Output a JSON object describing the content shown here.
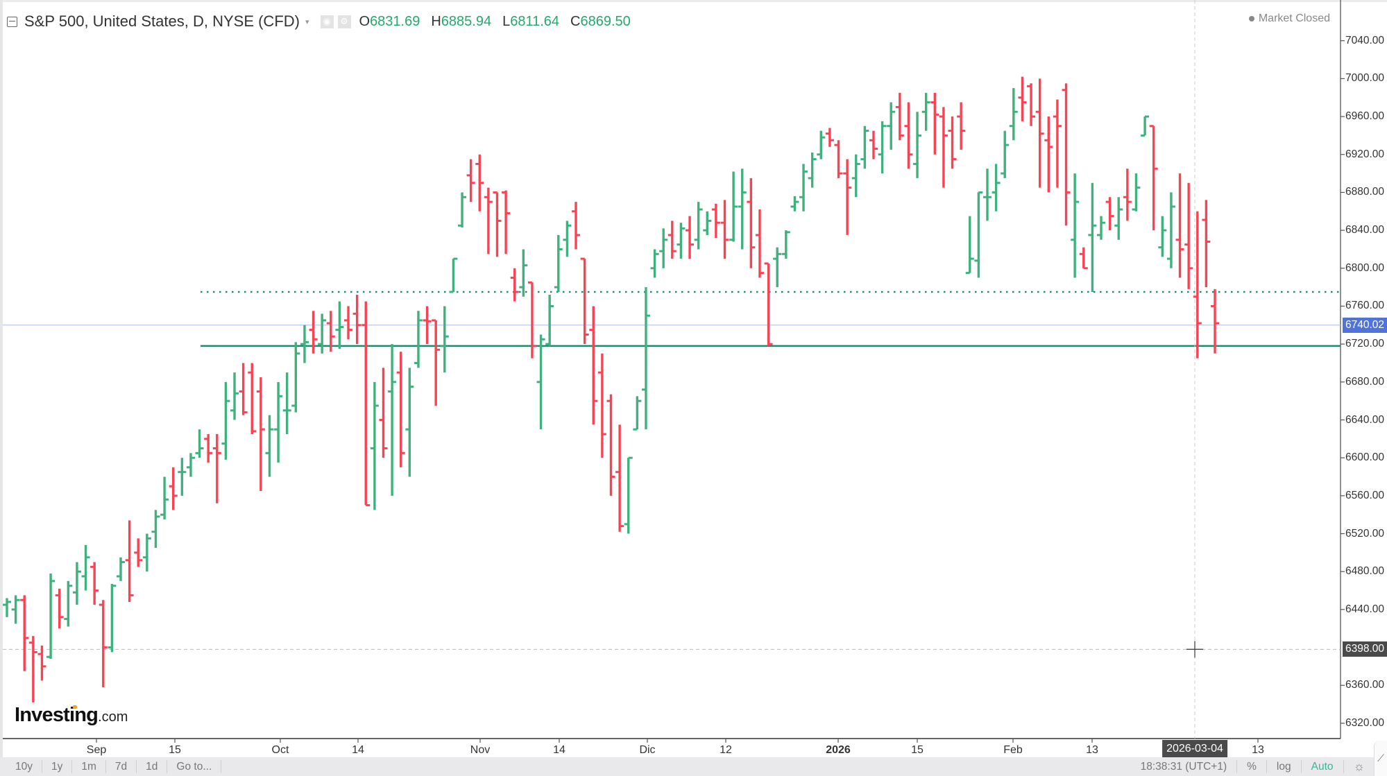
{
  "header": {
    "title": "S&P 500, United States, D, NYSE (CFD)",
    "caret": "▾",
    "icons": [
      "visibility-icon",
      "settings-icon"
    ],
    "ohlc": [
      {
        "key": "O",
        "value": "6831.69"
      },
      {
        "key": "H",
        "value": "6885.94"
      },
      {
        "key": "L",
        "value": "6811.64"
      },
      {
        "key": "C",
        "value": "6869.50"
      }
    ]
  },
  "status": {
    "market": "Market Closed"
  },
  "logo": {
    "name": "Investing",
    "suffix": ".com"
  },
  "colors": {
    "up": "#3fb17d",
    "down": "#f74454",
    "hline": "#0f8f6e",
    "price_line": "#b8c7f0",
    "price_badge": "#4f73d9",
    "crosshair_badge": "#4a4a4a",
    "auto": "#3bb39a"
  },
  "yaxis": {
    "ticks": [
      "7040.00",
      "7000.00",
      "6960.00",
      "6920.00",
      "6880.00",
      "6840.00",
      "6800.00",
      "6760.00",
      "6720.00",
      "6680.00",
      "6640.00",
      "6600.00",
      "6560.00",
      "6520.00",
      "6480.00",
      "6440.00",
      "6360.00",
      "6320.00"
    ],
    "price_badge": "6740.02",
    "crosshair_badge": "6398.00"
  },
  "xaxis": {
    "labels": [
      {
        "text": "Sep",
        "bold": false
      },
      {
        "text": "15",
        "bold": false
      },
      {
        "text": "Oct",
        "bold": false
      },
      {
        "text": "14",
        "bold": false
      },
      {
        "text": "Nov",
        "bold": false
      },
      {
        "text": "14",
        "bold": false
      },
      {
        "text": "Dic",
        "bold": false
      },
      {
        "text": "12",
        "bold": false
      },
      {
        "text": "2026",
        "bold": true
      },
      {
        "text": "15",
        "bold": false
      },
      {
        "text": "Feb",
        "bold": false
      },
      {
        "text": "13",
        "bold": false
      },
      {
        "text": "13",
        "bold": false
      }
    ],
    "crosshair_date": "2026-03-04"
  },
  "bottom_bar": {
    "ranges": [
      "10y",
      "1y",
      "1m",
      "7d",
      "1d",
      "Go to..."
    ],
    "time": "18:38:31 (UTC+1)",
    "percent": "%",
    "log": "log",
    "auto": "Auto"
  },
  "chart_data": {
    "type": "ohlc",
    "title": "S&P 500, United States, D, NYSE (CFD)",
    "xlabel": "",
    "ylabel": "",
    "ylim": [
      6300,
      7060
    ],
    "y_ticks": [
      6320,
      6360,
      6440,
      6480,
      6520,
      6560,
      6600,
      6640,
      6680,
      6720,
      6760,
      6800,
      6840,
      6880,
      6920,
      6960,
      7000,
      7040
    ],
    "x_tick_labels": [
      "Sep",
      "15",
      "Oct",
      "14",
      "Nov",
      "14",
      "Dic",
      "12",
      "2026",
      "15",
      "Feb",
      "13",
      "2026-03-04",
      "13"
    ],
    "horizontal_lines": [
      {
        "price": 6775,
        "style": "dotted",
        "color": "#0f8f6e"
      },
      {
        "price": 6718,
        "style": "solid",
        "color": "#0f8f6e"
      },
      {
        "price": 6740.02,
        "style": "thin",
        "color": "#b8c7f0",
        "label": "6740.02"
      }
    ],
    "crosshair": {
      "date": "2026-03-04",
      "price": 6398.0
    },
    "last_bar": {
      "open": 6831.69,
      "high": 6885.94,
      "low": 6811.64,
      "close": 6869.5
    },
    "bars": [
      [
        6445,
        6452,
        6432,
        6448
      ],
      [
        6440,
        6455,
        6425,
        6450
      ],
      [
        6450,
        6455,
        6375,
        6410
      ],
      [
        6405,
        6412,
        6342,
        6395
      ],
      [
        6393,
        6402,
        6365,
        6380
      ],
      [
        6390,
        6478,
        6388,
        6470
      ],
      [
        6455,
        6462,
        6420,
        6432
      ],
      [
        6430,
        6470,
        6422,
        6465
      ],
      [
        6458,
        6490,
        6445,
        6480
      ],
      [
        6475,
        6508,
        6460,
        6495
      ],
      [
        6485,
        6490,
        6445,
        6460
      ],
      [
        6445,
        6450,
        6358,
        6400
      ],
      [
        6400,
        6467,
        6395,
        6465
      ],
      [
        6475,
        6495,
        6470,
        6490
      ],
      [
        6492,
        6534,
        6448,
        6455
      ],
      [
        6500,
        6515,
        6485,
        6492
      ],
      [
        6495,
        6520,
        6480,
        6515
      ],
      [
        6522,
        6545,
        6505,
        6538
      ],
      [
        6540,
        6580,
        6535,
        6556
      ],
      [
        6570,
        6590,
        6545,
        6560
      ],
      [
        6585,
        6600,
        6560,
        6585
      ],
      [
        6590,
        6605,
        6580,
        6600
      ],
      [
        6605,
        6630,
        6600,
        6610
      ],
      [
        6620,
        6625,
        6595,
        6605
      ],
      [
        6610,
        6625,
        6552,
        6605
      ],
      [
        6615,
        6680,
        6598,
        6660
      ],
      [
        6650,
        6690,
        6640,
        6668
      ],
      [
        6670,
        6700,
        6645,
        6648
      ],
      [
        6690,
        6700,
        6625,
        6628
      ],
      [
        6670,
        6685,
        6565,
        6630
      ],
      [
        6605,
        6645,
        6580,
        6630
      ],
      [
        6630,
        6680,
        6595,
        6665
      ],
      [
        6650,
        6690,
        6625,
        6650
      ],
      [
        6655,
        6722,
        6648,
        6710
      ],
      [
        6720,
        6740,
        6700,
        6722
      ],
      [
        6735,
        6755,
        6710,
        6725
      ],
      [
        6720,
        6752,
        6710,
        6745
      ],
      [
        6742,
        6755,
        6712,
        6728
      ],
      [
        6735,
        6765,
        6715,
        6738
      ],
      [
        6745,
        6760,
        6725,
        6735
      ],
      [
        6752,
        6772,
        6720,
        6740
      ],
      [
        6740,
        6765,
        6550,
        6550
      ],
      [
        6610,
        6680,
        6545,
        6655
      ],
      [
        6640,
        6695,
        6600,
        6610
      ],
      [
        6670,
        6720,
        6560,
        6680
      ],
      [
        6690,
        6712,
        6590,
        6605
      ],
      [
        6630,
        6695,
        6580,
        6675
      ],
      [
        6700,
        6755,
        6695,
        6745
      ],
      [
        6745,
        6760,
        6720,
        6744
      ],
      [
        6745,
        6745,
        6655,
        6714
      ],
      [
        6718,
        6760,
        6690,
        6728
      ],
      [
        6775,
        6810,
        6775,
        6810
      ],
      [
        6845,
        6880,
        6843,
        6875
      ],
      [
        6898,
        6915,
        6870,
        6890
      ],
      [
        6910,
        6920,
        6860,
        6890
      ],
      [
        6875,
        6885,
        6815,
        6870
      ],
      [
        6880,
        6880,
        6812,
        6850
      ],
      [
        6880,
        6882,
        6815,
        6858
      ],
      [
        6790,
        6800,
        6765,
        6775
      ],
      [
        6780,
        6820,
        6770,
        6803
      ],
      [
        6785,
        6785,
        6705,
        6718
      ],
      [
        6680,
        6730,
        6630,
        6725
      ],
      [
        6720,
        6772,
        6718,
        6760
      ],
      [
        6780,
        6835,
        6775,
        6820
      ],
      [
        6830,
        6850,
        6812,
        6845
      ],
      [
        6860,
        6870,
        6820,
        6835
      ],
      [
        6810,
        6810,
        6720,
        6730
      ],
      [
        6735,
        6760,
        6635,
        6660
      ],
      [
        6690,
        6710,
        6600,
        6625
      ],
      [
        6660,
        6667,
        6560,
        6580
      ],
      [
        6585,
        6635,
        6522,
        6528
      ],
      [
        6530,
        6600,
        6520,
        6600
      ],
      [
        6630,
        6665,
        6630,
        6660
      ],
      [
        6672,
        6780,
        6630,
        6750
      ],
      [
        6800,
        6820,
        6790,
        6815
      ],
      [
        6818,
        6842,
        6800,
        6830
      ],
      [
        6835,
        6850,
        6810,
        6818
      ],
      [
        6825,
        6848,
        6810,
        6842
      ],
      [
        6840,
        6855,
        6810,
        6825
      ],
      [
        6830,
        6870,
        6820,
        6862
      ],
      [
        6840,
        6860,
        6835,
        6850
      ],
      [
        6862,
        6868,
        6832,
        6848
      ],
      [
        6848,
        6872,
        6810,
        6830
      ],
      [
        6830,
        6902,
        6828,
        6865
      ],
      [
        6865,
        6905,
        6820,
        6880
      ],
      [
        6870,
        6895,
        6800,
        6822
      ],
      [
        6835,
        6862,
        6790,
        6795
      ],
      [
        6805,
        6805,
        6718,
        6720
      ],
      [
        6810,
        6822,
        6780,
        6815
      ],
      [
        6815,
        6840,
        6810,
        6838
      ],
      [
        6865,
        6876,
        6860,
        6870
      ],
      [
        6875,
        6910,
        6860,
        6902
      ],
      [
        6895,
        6922,
        6885,
        6915
      ],
      [
        6920,
        6945,
        6915,
        6938
      ],
      [
        6942,
        6948,
        6928,
        6935
      ],
      [
        6930,
        6935,
        6895,
        6900
      ],
      [
        6900,
        6915,
        6835,
        6885
      ],
      [
        6895,
        6920,
        6875,
        6910
      ],
      [
        6915,
        6950,
        6905,
        6945
      ],
      [
        6935,
        6945,
        6915,
        6926
      ],
      [
        6920,
        6955,
        6900,
        6950
      ],
      [
        6950,
        6975,
        6925,
        6965
      ],
      [
        6970,
        6985,
        6935,
        6940
      ],
      [
        6950,
        6975,
        6905,
        6920
      ],
      [
        6910,
        6965,
        6895,
        6940
      ],
      [
        6965,
        6985,
        6945,
        6975
      ],
      [
        6975,
        6985,
        6920,
        6962
      ],
      [
        6960,
        6970,
        6885,
        6940
      ],
      [
        6945,
        6960,
        6905,
        6915
      ],
      [
        6960,
        6975,
        6925,
        6945
      ],
      [
        6795,
        6855,
        6795,
        6810
      ],
      [
        6808,
        6880,
        6790,
        6880
      ],
      [
        6875,
        6905,
        6850,
        6875
      ],
      [
        6880,
        6910,
        6860,
        6890
      ],
      [
        6900,
        6945,
        6895,
        6930
      ],
      [
        6950,
        6990,
        6935,
        6965
      ],
      [
        6980,
        7002,
        6955,
        6975
      ],
      [
        6992,
        6995,
        6950,
        6960
      ],
      [
        6965,
        7000,
        6885,
        6942
      ],
      [
        6935,
        6960,
        6880,
        6928
      ],
      [
        6960,
        6978,
        6885,
        6950
      ],
      [
        6988,
        6995,
        6845,
        6880
      ],
      [
        6830,
        6900,
        6790,
        6870
      ],
      [
        6815,
        6822,
        6800,
        6800
      ],
      [
        6835,
        6890,
        6775,
        6845
      ],
      [
        6835,
        6855,
        6830,
        6848
      ],
      [
        6870,
        6875,
        6840,
        6855
      ],
      [
        6845,
        6875,
        6830,
        6862
      ],
      [
        6875,
        6905,
        6850,
        6870
      ],
      [
        6862,
        6900,
        6860,
        6885
      ],
      [
        6940,
        6960,
        6940,
        6960
      ],
      [
        6950,
        6950,
        6840,
        6905
      ],
      [
        6822,
        6855,
        6812,
        6840
      ],
      [
        6810,
        6880,
        6800,
        6865
      ],
      [
        6830,
        6900,
        6790,
        6820
      ],
      [
        6825,
        6890,
        6778,
        6800
      ],
      [
        6770,
        6860,
        6705,
        6742
      ],
      [
        6851,
        6872,
        6780,
        6828
      ],
      [
        6760,
        6778,
        6710,
        6742
      ]
    ]
  }
}
